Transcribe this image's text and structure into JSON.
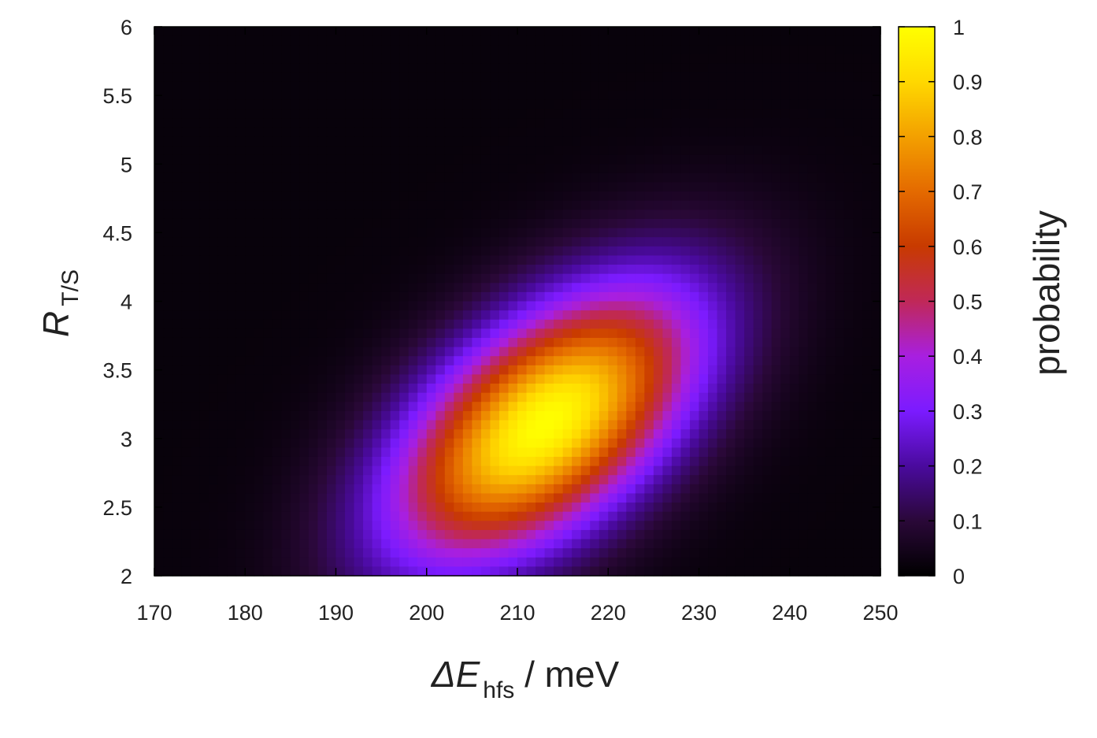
{
  "chart_data": {
    "type": "heatmap",
    "title": "",
    "xlabel": {
      "prefix": "ΔE",
      "subscript": "hfs",
      "suffix": " / meV"
    },
    "ylabel": {
      "main": "R",
      "subscript": "T/S"
    },
    "colorbar_label": "probability",
    "xlim": [
      170,
      250
    ],
    "ylim": [
      2,
      6
    ],
    "xticks": [
      170,
      180,
      190,
      200,
      210,
      220,
      230,
      240,
      250
    ],
    "yticks": [
      2,
      2.5,
      3,
      3.5,
      4,
      4.5,
      5,
      5.5,
      6
    ],
    "colorbar_range": [
      0,
      1
    ],
    "colorbar_ticks": [
      0,
      0.1,
      0.2,
      0.3,
      0.4,
      0.5,
      0.6,
      0.7,
      0.8,
      0.9,
      1
    ],
    "grid": false,
    "peak": {
      "x": 213,
      "y": 3.1,
      "value": 1.0
    },
    "distribution": {
      "sigma_x": 11.5,
      "sigma_y": 0.68,
      "correlation": 0.55,
      "baseline": 0.02
    },
    "colormap": [
      "#000000",
      "#2a0838",
      "#4a0a9e",
      "#7b1bff",
      "#a81fe0",
      "#c02858",
      "#c83a00",
      "#e46a00",
      "#f3a000",
      "#ffd800",
      "#ffff00"
    ]
  }
}
